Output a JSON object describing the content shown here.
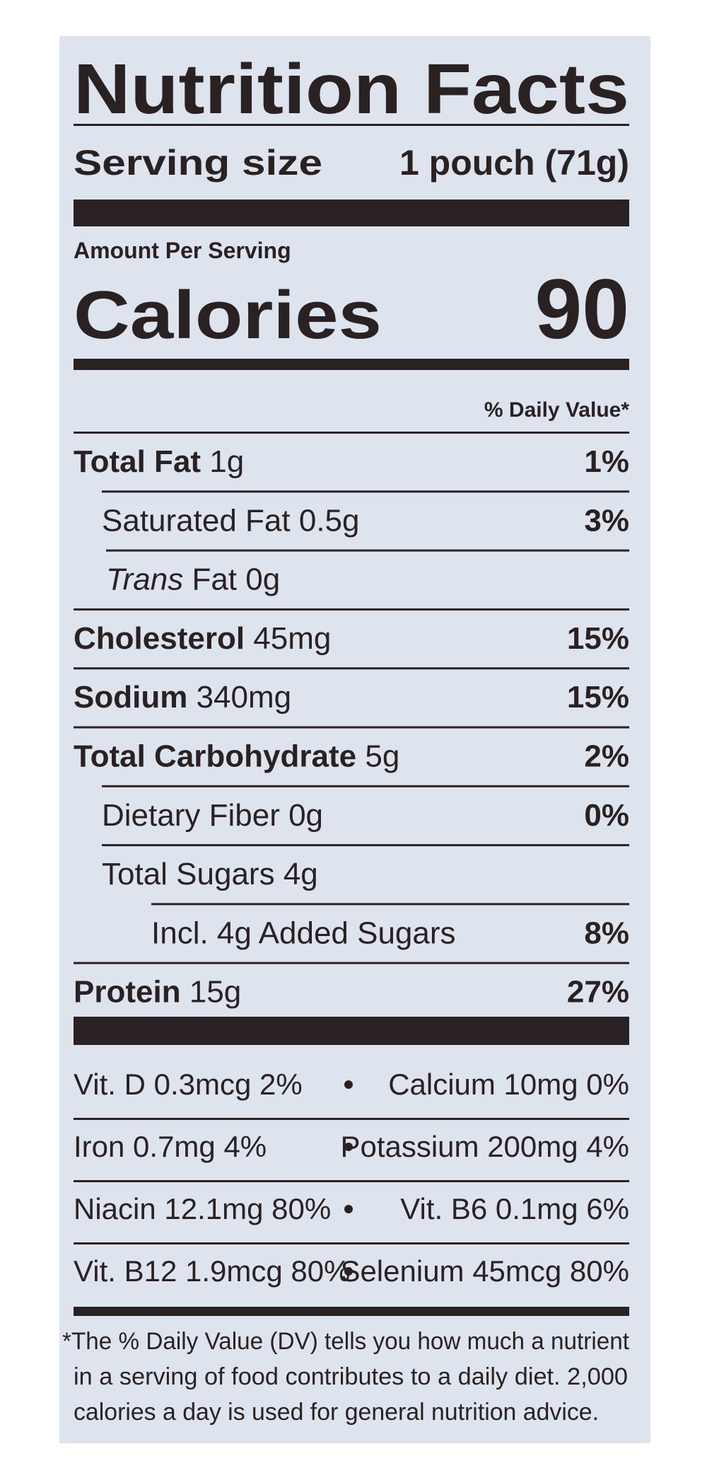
{
  "title": "Nutrition Facts",
  "serving": {
    "label": "Serving size",
    "value": "1 pouch (71g)"
  },
  "amount_per_serving": "Amount Per Serving",
  "calories": {
    "label": "Calories",
    "value": "90"
  },
  "dv_header": "% Daily Value*",
  "nutrients": [
    {
      "name": "Total Fat",
      "amount": "1g",
      "dv": "1%"
    },
    {
      "name": "Saturated Fat",
      "amount": "0.5g",
      "dv": "3%"
    },
    {
      "italic": "Trans",
      "name": "Fat",
      "amount": "0g"
    },
    {
      "name": "Cholesterol",
      "amount": "45mg",
      "dv": "15%"
    },
    {
      "name": "Sodium",
      "amount": "340mg",
      "dv": "15%"
    },
    {
      "name": "Total Carbohydrate",
      "amount": "5g",
      "dv": "2%"
    },
    {
      "name": "Dietary Fiber",
      "amount": "0g",
      "dv": "0%"
    },
    {
      "name": "Total Sugars",
      "amount": "4g"
    },
    {
      "name": "Incl. 4g Added Sugars",
      "dv": "8%"
    },
    {
      "name": "Protein",
      "amount": "15g",
      "dv": "27%"
    }
  ],
  "vitamins": [
    [
      "Vit. D 0.3mcg 2%",
      "Calcium 10mg 0%"
    ],
    [
      "Iron 0.7mg 4%",
      "Potassium 200mg 4%"
    ],
    [
      "Niacin 12.1mg 80%",
      "Vit. B6 0.1mg 6%"
    ],
    [
      "Vit. B12 1.9mcg 80%",
      "Selenium 45mcg 80%"
    ]
  ],
  "footnote": [
    "*The % Daily Value (DV) tells you how much a nutrient",
    "in a serving of food contributes to a daily diet. 2,000",
    "calories a day is used for general nutrition advice."
  ]
}
